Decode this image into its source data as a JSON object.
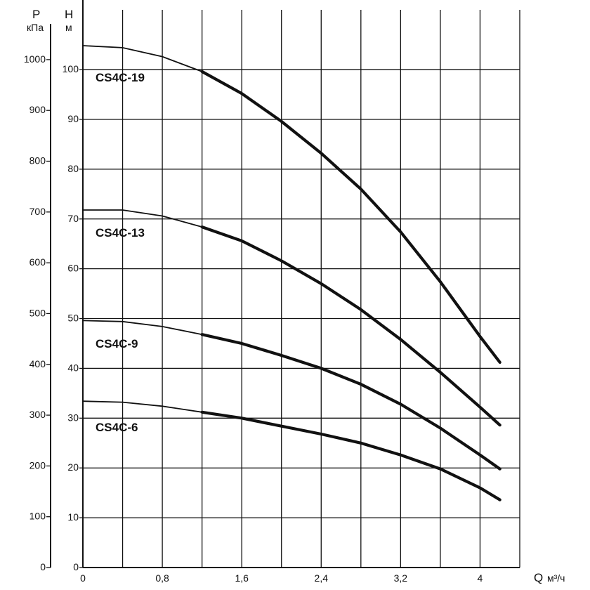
{
  "chart_data": {
    "type": "line",
    "x_axis": {
      "name": "Q",
      "unit": "м³/ч",
      "range": [
        0,
        4.4
      ],
      "tick_values": [
        0,
        0.8,
        1.6,
        2.4,
        3.2,
        4
      ],
      "tick_labels": [
        "0",
        "0,8",
        "1,6",
        "2,4",
        "3,2",
        "4"
      ],
      "grid_step": 0.4
    },
    "y_axis_head": {
      "name": "H",
      "unit": "м",
      "range": [
        0,
        112
      ],
      "tick_values": [
        0,
        10,
        20,
        30,
        40,
        50,
        60,
        70,
        80,
        90,
        100
      ],
      "tick_labels": [
        "0",
        "10",
        "20",
        "30",
        "40",
        "50",
        "60",
        "70",
        "80",
        "90",
        "100"
      ]
    },
    "y_axis_pressure": {
      "name": "P",
      "unit": "кПа",
      "tick_values": [
        0,
        100,
        200,
        300,
        400,
        500,
        600,
        700,
        800,
        900,
        1000
      ],
      "tick_labels": [
        "0",
        "100",
        "200",
        "300",
        "400",
        "500",
        "600",
        "700",
        "800",
        "900",
        "1000"
      ],
      "metres_per_unit": 0.102
    },
    "grid": true,
    "series": [
      {
        "name": "CS4C-19",
        "thin_until": 1.2,
        "points": [
          [
            0,
            104.8
          ],
          [
            0.4,
            104.4
          ],
          [
            0.8,
            102.6
          ],
          [
            1.2,
            99.6
          ],
          [
            1.6,
            95.2
          ],
          [
            2.0,
            89.6
          ],
          [
            2.4,
            83.2
          ],
          [
            2.8,
            76.0
          ],
          [
            3.2,
            67.4
          ],
          [
            3.6,
            57.4
          ],
          [
            4.0,
            46.4
          ],
          [
            4.2,
            41.2
          ]
        ]
      },
      {
        "name": "CS4C-13",
        "thin_until": 1.2,
        "points": [
          [
            0,
            71.8
          ],
          [
            0.4,
            71.8
          ],
          [
            0.8,
            70.6
          ],
          [
            1.2,
            68.4
          ],
          [
            1.6,
            65.6
          ],
          [
            2.0,
            61.6
          ],
          [
            2.4,
            57.0
          ],
          [
            2.8,
            51.8
          ],
          [
            3.2,
            45.8
          ],
          [
            3.6,
            39.2
          ],
          [
            4.0,
            32.2
          ],
          [
            4.2,
            28.6
          ]
        ]
      },
      {
        "name": "CS4C-9",
        "thin_until": 1.2,
        "points": [
          [
            0,
            49.6
          ],
          [
            0.4,
            49.4
          ],
          [
            0.8,
            48.4
          ],
          [
            1.2,
            46.8
          ],
          [
            1.6,
            45.0
          ],
          [
            2.0,
            42.6
          ],
          [
            2.4,
            40.0
          ],
          [
            2.8,
            36.8
          ],
          [
            3.2,
            32.8
          ],
          [
            3.6,
            28.0
          ],
          [
            4.0,
            22.6
          ],
          [
            4.2,
            19.8
          ]
        ]
      },
      {
        "name": "CS4C-6",
        "thin_until": 1.2,
        "points": [
          [
            0,
            33.4
          ],
          [
            0.4,
            33.2
          ],
          [
            0.8,
            32.4
          ],
          [
            1.2,
            31.2
          ],
          [
            1.6,
            30.0
          ],
          [
            2.0,
            28.4
          ],
          [
            2.4,
            26.8
          ],
          [
            2.8,
            25.0
          ],
          [
            3.2,
            22.6
          ],
          [
            3.6,
            19.8
          ],
          [
            4.0,
            16.0
          ],
          [
            4.2,
            13.6
          ]
        ]
      }
    ]
  }
}
